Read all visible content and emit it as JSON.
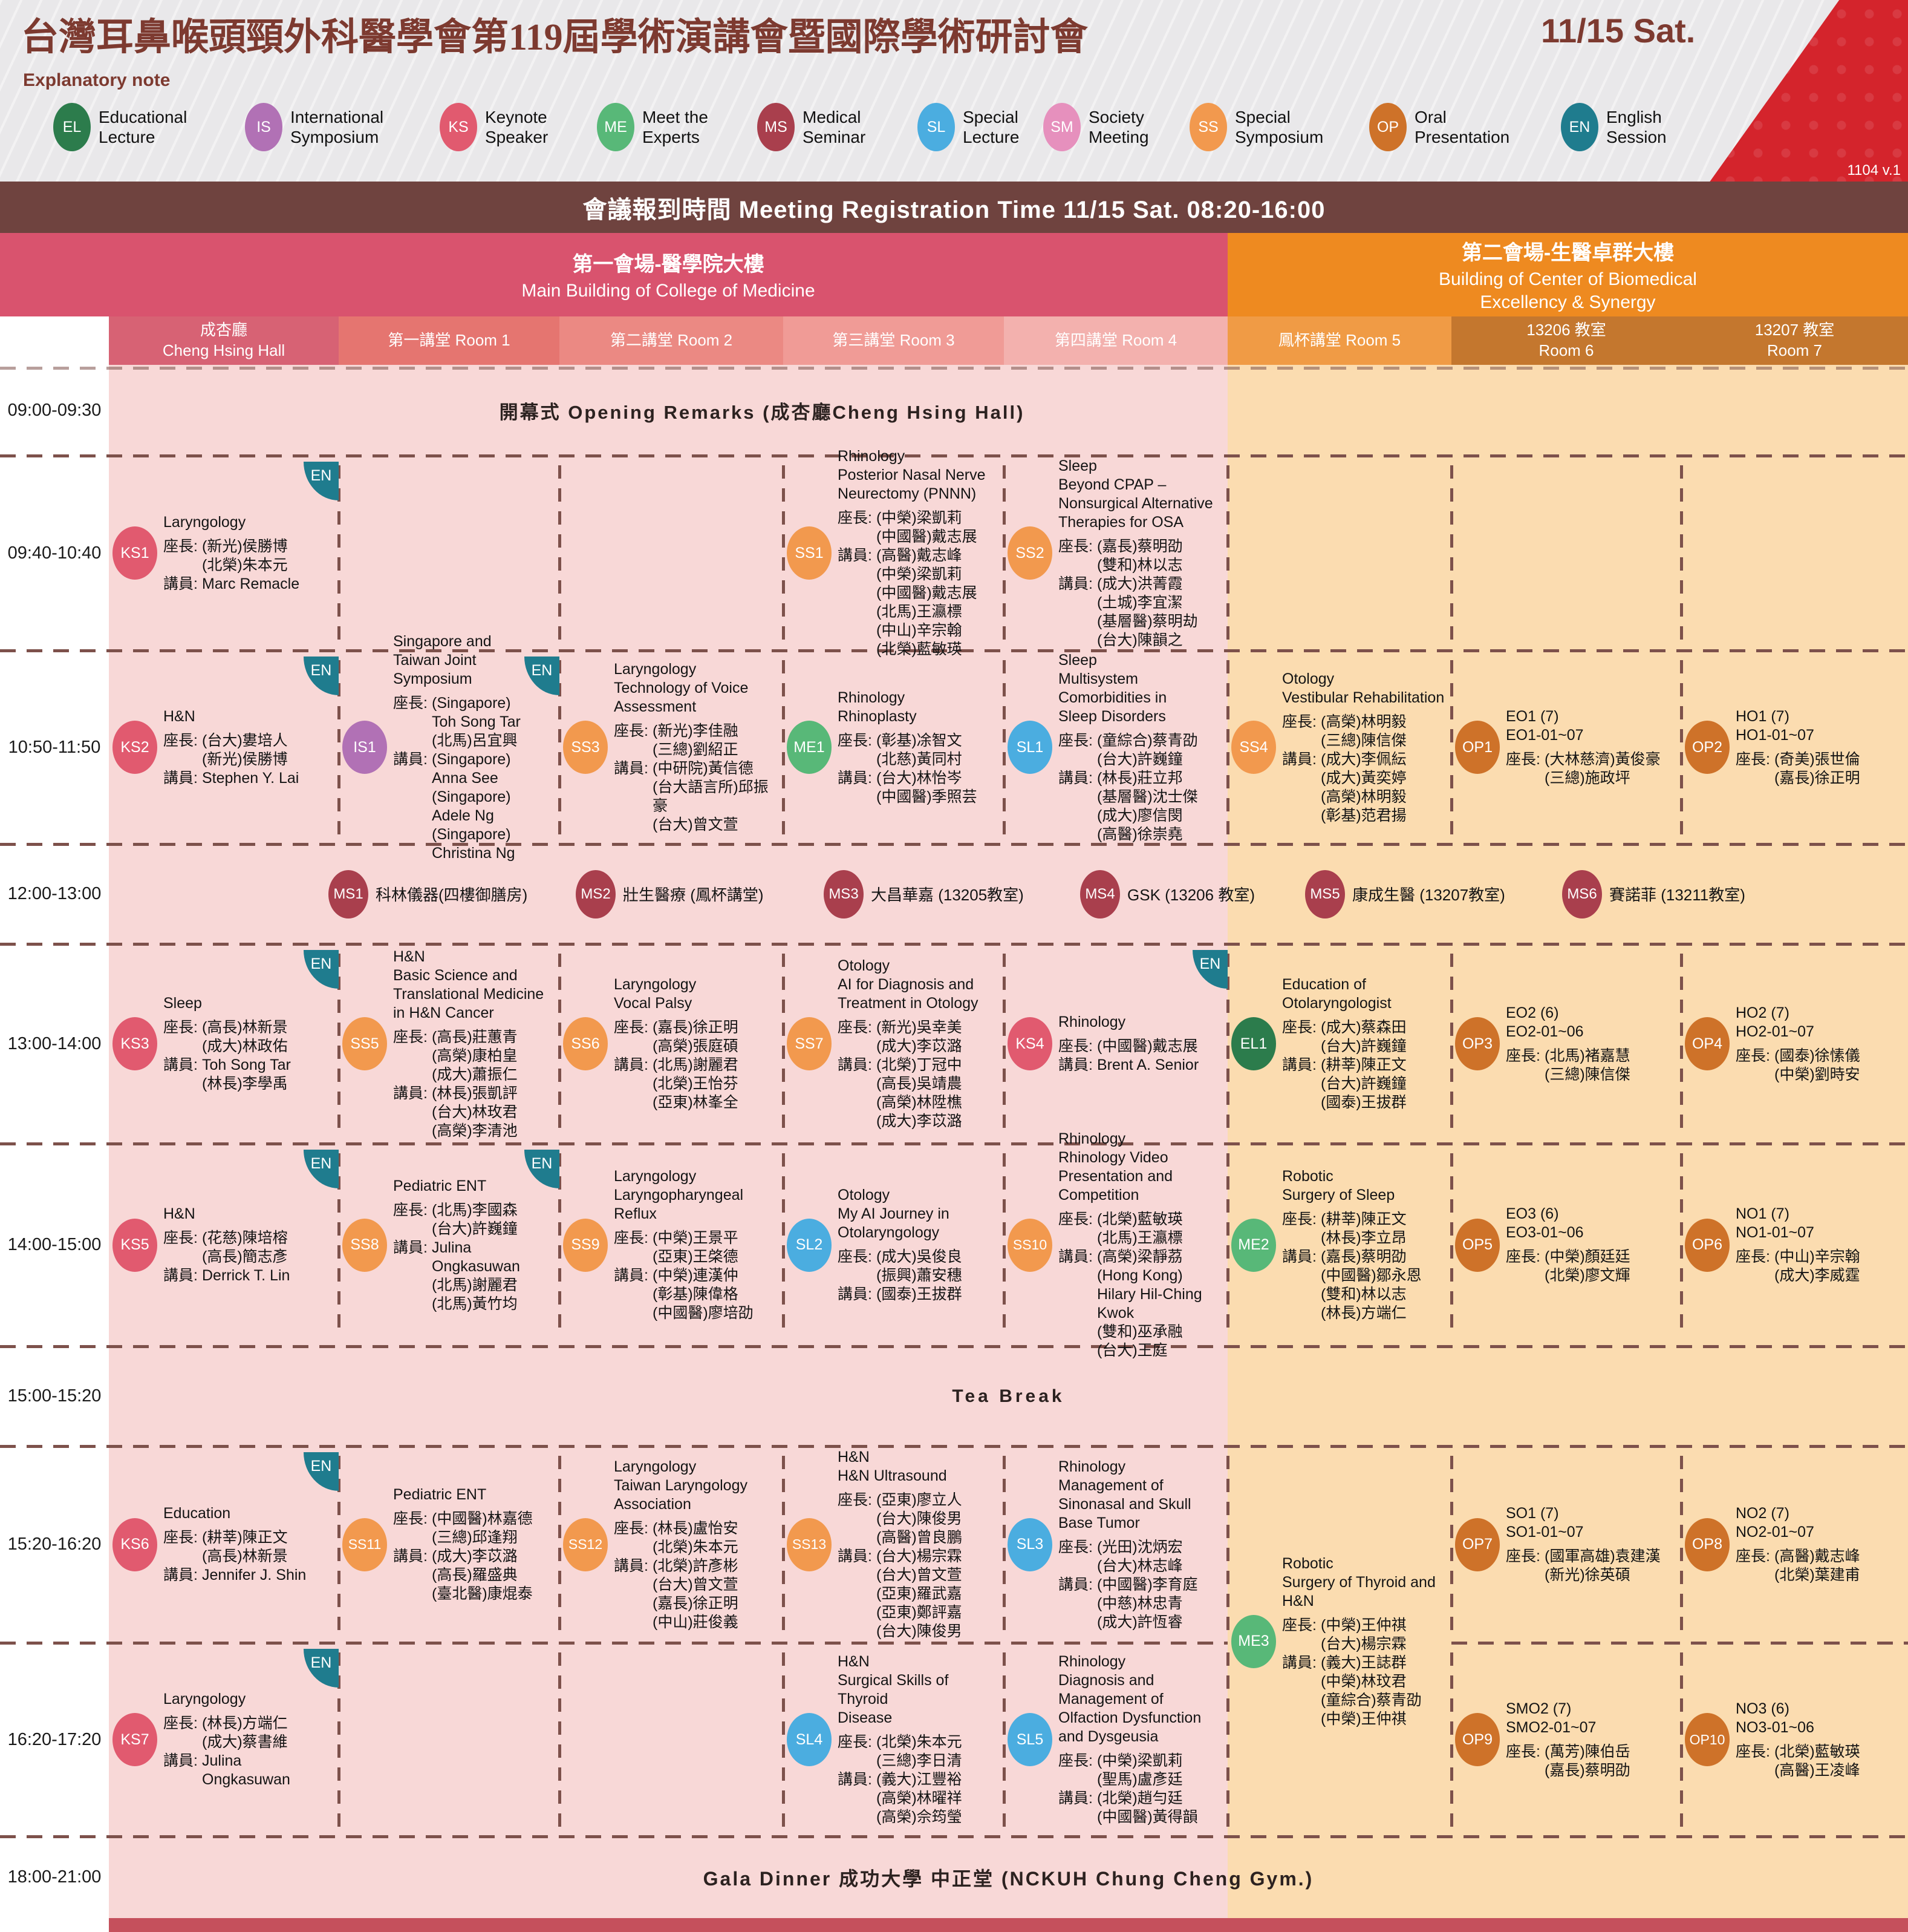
{
  "header": {
    "title": "台灣耳鼻喉頭頸外科醫學會第119屆學術演講會暨國際學術研討會",
    "date": "11/15 Sat.",
    "explanatory_note": "Explanatory note",
    "version": "1104 v.1"
  },
  "badge_colors": {
    "EL": "#2c7c4c",
    "IS": "#b171b5",
    "KS": "#e15a6f",
    "ME": "#58b878",
    "MS": "#a93f4d",
    "SL": "#4bade0",
    "SM": "#e690bd",
    "SS": "#f2994e",
    "OP": "#ce7229",
    "EN": "#1f7c8e"
  },
  "legend": [
    {
      "code": "EL",
      "label": "Educational\nLecture"
    },
    {
      "code": "IS",
      "label": "International\nSymposium"
    },
    {
      "code": "KS",
      "label": "Keynote\nSpeaker"
    },
    {
      "code": "ME",
      "label": "Meet the\nExperts"
    },
    {
      "code": "MS",
      "label": "Medical\nSeminar"
    },
    {
      "code": "SL",
      "label": "Special\nLecture"
    },
    {
      "code": "SM",
      "label": "Society\nMeeting"
    },
    {
      "code": "SS",
      "label": "Special\nSymposium"
    },
    {
      "code": "OP",
      "label": "Oral\nPresentation"
    },
    {
      "code": "EN",
      "label": "English\nSession"
    }
  ],
  "registration": "會議報到時間 Meeting Registration Time 11/15 Sat. 08:20-16:00",
  "venues": [
    {
      "zh": "第一會場-醫學院大樓",
      "en": "Main Building of College of Medicine",
      "color": "#d9536e"
    },
    {
      "zh": "第二會場-生醫卓群大樓",
      "en": "Building of Center of Biomedical\nExcellency & Synergy",
      "color": "#ee8a20"
    }
  ],
  "rooms": [
    {
      "zh": "成杏廳",
      "en": "Cheng Hsing Hall",
      "color": "#d76274",
      "stacked": true
    },
    {
      "zh": "第一講堂",
      "en": "Room 1",
      "color": "#e57570",
      "stacked": false
    },
    {
      "zh": "第二講堂",
      "en": "Room 2",
      "color": "#eb8983",
      "stacked": false
    },
    {
      "zh": "第三講堂",
      "en": "Room 3",
      "color": "#f09b96",
      "stacked": false
    },
    {
      "zh": "第四講堂",
      "en": "Room 4",
      "color": "#f3b1ae",
      "stacked": false
    },
    {
      "zh": "鳳杯講堂",
      "en": "Room 5",
      "color": "#f09b45",
      "stacked": false
    },
    {
      "zh": "13206 教室",
      "en": "Room 6",
      "color": "#c4772e",
      "stacked": true
    },
    {
      "zh": "13207 教室",
      "en": "Room 7",
      "color": "#c4772e",
      "stacked": true
    }
  ],
  "rows": [
    {
      "time": "09:00-09:30",
      "kind": "banner",
      "text_key": "opening"
    },
    {
      "time": "09:40-10:40",
      "kind": "sessions"
    },
    {
      "time": "10:50-11:50",
      "kind": "sessions"
    },
    {
      "time": "12:00-13:00",
      "kind": "seminars"
    },
    {
      "time": "13:00-14:00",
      "kind": "sessions"
    },
    {
      "time": "14:00-15:00",
      "kind": "sessions"
    },
    {
      "time": "15:00-15:20",
      "kind": "banner",
      "text_key": "tea"
    },
    {
      "time": "15:20-16:20",
      "kind": "sessions"
    },
    {
      "time": "16:20-17:20",
      "kind": "sessions"
    },
    {
      "time": "18:00-21:00",
      "kind": "banner",
      "text_key": "gala"
    }
  ],
  "banners": {
    "opening": "開幕式 Opening Remarks (成杏廳Cheng Hsing Hall)",
    "tea": "Tea Break",
    "gala": "Gala Dinner 成功大學 中正堂 (NCKUH Chung Cheng Gym.)"
  },
  "labels": {
    "chair": "座長:",
    "speaker": "講員:",
    "en_badge": "EN"
  },
  "seminars": [
    {
      "id": "MS1",
      "text": "科林儀器(四樓御膳房)"
    },
    {
      "id": "MS2",
      "text": "壯生醫療 (鳳杯講堂)"
    },
    {
      "id": "MS3",
      "text": "大昌華嘉 (13205教室)"
    },
    {
      "id": "MS4",
      "text": "GSK (13206 教室)"
    },
    {
      "id": "MS5",
      "text": "康成生醫 (13207教室)"
    },
    {
      "id": "MS6",
      "text": "賽諾菲 (13211教室)"
    }
  ],
  "sessions": [
    {
      "id": "KS1",
      "type": "KS",
      "row": 1,
      "col": 0,
      "en": true,
      "title": [
        "Laryngology"
      ],
      "chairs": [
        "(新光)侯勝博",
        "(北榮)朱本元"
      ],
      "speakers": [
        "Marc Remacle"
      ]
    },
    {
      "id": "SS1",
      "type": "SS",
      "row": 1,
      "col": 3,
      "title": [
        "Rhinology",
        "Posterior Nasal Nerve",
        "Neurectomy (PNNN)"
      ],
      "chairs": [
        "(中榮)梁凱莉",
        "(中國醫)戴志展"
      ],
      "speakers": [
        "(高醫)戴志峰",
        "(中榮)梁凱莉",
        "(中國醫)戴志展",
        "(北馬)王瀛標",
        "(中山)辛宗翰",
        "(北榮)藍敏瑛"
      ]
    },
    {
      "id": "SS2",
      "type": "SS",
      "row": 1,
      "col": 4,
      "title": [
        "Sleep",
        "Beyond CPAP –",
        "Nonsurgical Alternative",
        "Therapies for OSA"
      ],
      "chairs": [
        "(嘉長)蔡明劭",
        "(雙和)林以志"
      ],
      "speakers": [
        "(成大)洪菁霞",
        "(土城)李宜潔",
        "(基層醫)蔡明劫",
        "(台大)陳韻之"
      ]
    },
    {
      "id": "KS2",
      "type": "KS",
      "row": 2,
      "col": 0,
      "en": true,
      "title": [
        "H&N"
      ],
      "chairs": [
        "(台大)婁培人",
        "(新光)侯勝博"
      ],
      "speakers": [
        "Stephen Y. Lai"
      ]
    },
    {
      "id": "IS1",
      "type": "IS",
      "row": 2,
      "col": 1,
      "en": true,
      "title": [
        "Singapore and",
        "Taiwan Joint",
        "Symposium"
      ],
      "chairs": [
        "(Singapore)",
        "Toh Song Tar",
        "(北馬)呂宜興"
      ],
      "speakers": [
        "(Singapore)",
        "Anna See",
        "(Singapore)",
        "Adele Ng",
        "(Singapore)",
        "Christina Ng"
      ]
    },
    {
      "id": "SS3",
      "type": "SS",
      "row": 2,
      "col": 2,
      "title": [
        "Laryngology",
        "Technology of Voice",
        "Assessment"
      ],
      "chairs": [
        "(新光)李佳融",
        "(三總)劉紹正"
      ],
      "speakers": [
        "(中研院)黃信德",
        "(台大語言所)邱振豪",
        "(台大)曾文萱"
      ]
    },
    {
      "id": "ME1",
      "type": "ME",
      "row": 2,
      "col": 3,
      "title": [
        "Rhinology",
        "Rhinoplasty"
      ],
      "chairs": [
        "(彰基)凃智文",
        "(北慈)黃同村"
      ],
      "speakers": [
        "(台大)林怡岑",
        "(中國醫)季照芸"
      ]
    },
    {
      "id": "SL1",
      "type": "SL",
      "row": 2,
      "col": 4,
      "title": [
        "Sleep",
        "Multisystem",
        "Comorbidities in",
        "Sleep Disorders"
      ],
      "chairs": [
        "(童綜合)蔡青劭",
        "(台大)許巍鐘"
      ],
      "speakers": [
        "(林長)莊立邦",
        "(基層醫)沈士傑",
        "(成大)廖信閔",
        "(高醫)徐崇堯"
      ]
    },
    {
      "id": "SS4",
      "type": "SS",
      "row": 2,
      "col": 5,
      "title": [
        "Otology",
        "Vestibular Rehabilitation"
      ],
      "chairs": [
        "(高榮)林明毅",
        "(三總)陳信傑"
      ],
      "speakers": [
        "(成大)李佩紜",
        "(成大)黃奕婷",
        "(高榮)林明毅",
        "(彰基)范君揚"
      ]
    },
    {
      "id": "OP1",
      "type": "OP",
      "row": 2,
      "col": 6,
      "title": [
        "EO1 (7)",
        "EO1-01~07"
      ],
      "chairs": [
        "(大林慈濟)黃俊豪",
        "(三總)施政坪"
      ],
      "speakers": []
    },
    {
      "id": "OP2",
      "type": "OP",
      "row": 2,
      "col": 7,
      "title": [
        "HO1 (7)",
        "HO1-01~07"
      ],
      "chairs": [
        "(奇美)張世倫",
        "(嘉長)徐正明"
      ],
      "speakers": []
    },
    {
      "id": "KS3",
      "type": "KS",
      "row": 4,
      "col": 0,
      "en": true,
      "title": [
        "Sleep"
      ],
      "chairs": [
        "(高長)林新景",
        "(成大)林政佑"
      ],
      "speakers": [
        "Toh Song Tar",
        "(林長)李學禹"
      ]
    },
    {
      "id": "SS5",
      "type": "SS",
      "row": 4,
      "col": 1,
      "title": [
        "H&N",
        "Basic Science and",
        "Translational Medicine",
        "in H&N Cancer"
      ],
      "chairs": [
        "(高長)莊蕙青",
        "(高榮)康柏皇",
        "(成大)蕭振仁"
      ],
      "speakers": [
        "(林長)張凱評",
        "(台大)林玫君",
        "(高榮)李清池"
      ]
    },
    {
      "id": "SS6",
      "type": "SS",
      "row": 4,
      "col": 2,
      "title": [
        "Laryngology",
        "Vocal Palsy"
      ],
      "chairs": [
        "(嘉長)徐正明",
        "(高榮)張庭碩"
      ],
      "speakers": [
        "(北馬)謝麗君",
        "(北榮)王怡芬",
        "(亞東)林峯全"
      ]
    },
    {
      "id": "SS7",
      "type": "SS",
      "row": 4,
      "col": 3,
      "title": [
        "Otology",
        "AI for Diagnosis and",
        "Treatment in Otology"
      ],
      "chairs": [
        "(新光)吳幸美",
        "(成大)李苡潞"
      ],
      "speakers": [
        "(北榮)丁冠中",
        "(高長)吳靖農",
        "(高榮)林陞樵",
        "(成大)李苡潞"
      ]
    },
    {
      "id": "KS4",
      "type": "KS",
      "row": 4,
      "col": 4,
      "en": true,
      "title": [
        "Rhinology"
      ],
      "chairs": [
        "(中國醫)戴志展"
      ],
      "speakers": [
        "Brent A. Senior"
      ]
    },
    {
      "id": "EL1",
      "type": "EL",
      "row": 4,
      "col": 5,
      "title": [
        "Education of",
        "Otolaryngologist"
      ],
      "chairs": [
        "(成大)蔡森田",
        "(台大)許巍鐘"
      ],
      "speakers": [
        "(耕莘)陳正文",
        "(台大)許巍鐘",
        "(國泰)王拔群"
      ]
    },
    {
      "id": "OP3",
      "type": "OP",
      "row": 4,
      "col": 6,
      "title": [
        "EO2 (6)",
        "EO2-01~06"
      ],
      "chairs": [
        "(北馬)褚嘉慧",
        "(三總)陳信傑"
      ],
      "speakers": []
    },
    {
      "id": "OP4",
      "type": "OP",
      "row": 4,
      "col": 7,
      "title": [
        "HO2 (7)",
        "HO2-01~07"
      ],
      "chairs": [
        "(國泰)徐愫儀",
        "(中榮)劉時安"
      ],
      "speakers": []
    },
    {
      "id": "KS5",
      "type": "KS",
      "row": 5,
      "col": 0,
      "en": true,
      "title": [
        "H&N"
      ],
      "chairs": [
        "(花慈)陳培榕",
        "(高長)簡志彥"
      ],
      "speakers": [
        "Derrick T. Lin"
      ]
    },
    {
      "id": "SS8",
      "type": "SS",
      "row": 5,
      "col": 1,
      "en": true,
      "title": [
        "Pediatric ENT"
      ],
      "chairs": [
        "(北馬)李國森",
        "(台大)許巍鐘"
      ],
      "speakers": [
        "Julina",
        "Ongkasuwan",
        "(北馬)謝麗君",
        "(北馬)黃竹均"
      ]
    },
    {
      "id": "SS9",
      "type": "SS",
      "row": 5,
      "col": 2,
      "title": [
        "Laryngology",
        "Laryngopharyngeal",
        "Reflux"
      ],
      "chairs": [
        "(中榮)王景平",
        "(亞東)王棨德"
      ],
      "speakers": [
        "(中榮)連漢仲",
        "(彰基)陳偉格",
        "(中國醫)廖培劭"
      ]
    },
    {
      "id": "SL2",
      "type": "SL",
      "row": 5,
      "col": 3,
      "title": [
        "Otology",
        "My AI Journey in",
        "Otolaryngology"
      ],
      "chairs": [
        "(成大)吳俊良",
        "(振興)蕭安穗"
      ],
      "speakers": [
        "(國泰)王拔群"
      ]
    },
    {
      "id": "SS10",
      "type": "SS",
      "row": 5,
      "col": 4,
      "title": [
        "Rhinology",
        "Rhinology Video",
        "Presentation and",
        "Competition"
      ],
      "chairs": [
        "(北榮)藍敏瑛",
        "(北馬)王瀛標"
      ],
      "speakers": [
        "(高榮)梁靜茘",
        "(Hong Kong)",
        "Hilary Hil-Ching Kwok",
        "(雙和)巫承融",
        "(台大)王庭"
      ]
    },
    {
      "id": "ME2",
      "type": "ME",
      "row": 5,
      "col": 5,
      "title": [
        "Robotic",
        "Surgery of Sleep"
      ],
      "chairs": [
        "(耕莘)陳正文",
        "(林長)李立昂"
      ],
      "speakers": [
        "(嘉長)蔡明劭",
        "(中國醫)鄒永恩",
        "(雙和)林以志",
        "(林長)方端仁"
      ]
    },
    {
      "id": "OP5",
      "type": "OP",
      "row": 5,
      "col": 6,
      "title": [
        "EO3 (6)",
        "EO3-01~06"
      ],
      "chairs": [
        "(中榮)顏廷廷",
        "(北榮)廖文輝"
      ],
      "speakers": []
    },
    {
      "id": "OP6",
      "type": "OP",
      "row": 5,
      "col": 7,
      "title": [
        "NO1 (7)",
        "NO1-01~07"
      ],
      "chairs": [
        "(中山)辛宗翰",
        "(成大)李威霆"
      ],
      "speakers": []
    },
    {
      "id": "KS6",
      "type": "KS",
      "row": 7,
      "col": 0,
      "en": true,
      "title": [
        "Education"
      ],
      "chairs": [
        "(耕莘)陳正文",
        "(高長)林新景"
      ],
      "speakers": [
        "Jennifer J. Shin"
      ]
    },
    {
      "id": "SS11",
      "type": "SS",
      "row": 7,
      "col": 1,
      "title": [
        "Pediatric ENT"
      ],
      "chairs": [
        "(中國醫)林嘉德",
        "(三總)邱逢翔"
      ],
      "speakers": [
        "(成大)李苡潞",
        "(高長)羅盛典",
        "(臺北醫)康焜泰"
      ]
    },
    {
      "id": "SS12",
      "type": "SS",
      "row": 7,
      "col": 2,
      "title": [
        "Laryngology",
        "Taiwan Laryngology",
        "Association"
      ],
      "chairs": [
        "(林長)盧怡安",
        "(北榮)朱本元"
      ],
      "speakers": [
        "(北榮)許彥彬",
        "(台大)曾文萱",
        "(嘉長)徐正明",
        "(中山)莊俊義"
      ]
    },
    {
      "id": "SS13",
      "type": "SS",
      "row": 7,
      "col": 3,
      "title": [
        "H&N",
        "H&N Ultrasound"
      ],
      "chairs": [
        "(亞東)廖立人",
        "(台大)陳俊男",
        "(高醫)曾良鵬"
      ],
      "speakers": [
        "(台大)楊宗霖",
        "(台大)曾文萱",
        "(亞東)羅武嘉",
        "(亞東)鄭評嘉",
        "(台大)陳俊男"
      ]
    },
    {
      "id": "SL3",
      "type": "SL",
      "row": 7,
      "col": 4,
      "title": [
        "Rhinology",
        "Management of",
        "Sinonasal and Skull",
        "Base Tumor"
      ],
      "chairs": [
        "(光田)沈炳宏",
        "(台大)林志峰"
      ],
      "speakers": [
        "(中國醫)李育庭",
        "(中慈)林忠青",
        "(成大)許恆睿"
      ]
    },
    {
      "id": "ME3",
      "type": "ME",
      "row": 7,
      "col": 5,
      "span2": true,
      "title": [
        "Robotic",
        "Surgery of Thyroid and",
        "H&N"
      ],
      "chairs": [
        "(中榮)王仲祺",
        "(台大)楊宗霖"
      ],
      "speakers": [
        "(義大)王誌群",
        "(中榮)林玟君",
        "(童綜合)蔡青劭",
        "(中榮)王仲祺"
      ]
    },
    {
      "id": "OP7",
      "type": "OP",
      "row": 7,
      "col": 6,
      "title": [
        "SO1 (7)",
        "SO1-01~07"
      ],
      "chairs": [
        "(國軍高雄)袁建漢",
        "(新光)徐英碩"
      ],
      "speakers": []
    },
    {
      "id": "OP8",
      "type": "OP",
      "row": 7,
      "col": 7,
      "title": [
        "NO2 (7)",
        "NO2-01~07"
      ],
      "chairs": [
        "(高醫)戴志峰",
        "(北榮)葉建甫"
      ],
      "speakers": []
    },
    {
      "id": "KS7",
      "type": "KS",
      "row": 8,
      "col": 0,
      "en": true,
      "title": [
        "Laryngology"
      ],
      "chairs": [
        "(林長)方端仁",
        "(成大)蔡書維"
      ],
      "speakers": [
        "Julina",
        "Ongkasuwan"
      ]
    },
    {
      "id": "SL4",
      "type": "SL",
      "row": 8,
      "col": 3,
      "title": [
        "H&N",
        "Surgical Skills of Thyroid",
        "Disease"
      ],
      "chairs": [
        "(北榮)朱本元",
        "(三總)李日清"
      ],
      "speakers": [
        "(義大)江豐裕",
        "(高榮)林曜祥",
        "(高榮)佘筠瑩"
      ]
    },
    {
      "id": "SL5",
      "type": "SL",
      "row": 8,
      "col": 4,
      "title": [
        "Rhinology",
        "Diagnosis and",
        "Management of",
        "Olfaction Dysfunction",
        "and Dysgeusia"
      ],
      "chairs": [
        "(中榮)梁凱莉",
        "(聖馬)盧彥廷"
      ],
      "speakers": [
        "(北榮)趙勻廷",
        "(中國醫)黃得韻"
      ]
    },
    {
      "id": "OP9",
      "type": "OP",
      "row": 8,
      "col": 6,
      "title": [
        "SMO2 (7)",
        "SMO2-01~07"
      ],
      "chairs": [
        "(萬芳)陳伯岳",
        "(嘉長)蔡明劭"
      ],
      "speakers": []
    },
    {
      "id": "OP10",
      "type": "OP",
      "row": 8,
      "col": 7,
      "title": [
        "NO3 (6)",
        "NO3-01~06"
      ],
      "chairs": [
        "(北榮)藍敏瑛",
        "(高醫)王凌峰"
      ],
      "speakers": []
    }
  ]
}
